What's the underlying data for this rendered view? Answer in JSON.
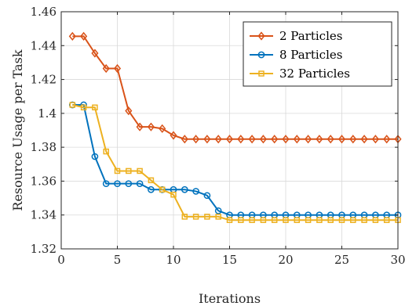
{
  "chart_data": {
    "type": "line",
    "xlabel": "Iterations",
    "ylabel": "Resource Usage per Task",
    "xlim": [
      0,
      30
    ],
    "ylim": [
      1.32,
      1.46
    ],
    "xticks": [
      0,
      5,
      10,
      15,
      20,
      25,
      30
    ],
    "yticks": [
      1.32,
      1.34,
      1.36,
      1.38,
      1.4,
      1.42,
      1.44,
      1.46
    ],
    "ytick_labels": [
      "1.32",
      "1.34",
      "1.36",
      "1.38",
      "1.4",
      "1.42",
      "1.44",
      "1.46"
    ],
    "grid": true,
    "legend_position": "top-right",
    "x": [
      1,
      2,
      3,
      4,
      5,
      6,
      7,
      8,
      9,
      10,
      11,
      12,
      13,
      14,
      15,
      16,
      17,
      18,
      19,
      20,
      21,
      22,
      23,
      24,
      25,
      26,
      27,
      28,
      29,
      30
    ],
    "series": [
      {
        "name": "2 Particles",
        "color": "#D95319",
        "marker": "diamond",
        "values": [
          1.4455,
          1.4455,
          1.4355,
          1.4265,
          1.4265,
          1.4015,
          1.392,
          1.392,
          1.391,
          1.387,
          1.3848,
          1.3848,
          1.3848,
          1.3848,
          1.3848,
          1.3848,
          1.3848,
          1.3848,
          1.3848,
          1.3848,
          1.3848,
          1.3848,
          1.3848,
          1.3848,
          1.3848,
          1.3848,
          1.3848,
          1.3848,
          1.3848,
          1.3848
        ]
      },
      {
        "name": "8 Particles",
        "color": "#0072BD",
        "marker": "circle",
        "values": [
          1.405,
          1.405,
          1.3745,
          1.3585,
          1.3585,
          1.3585,
          1.3585,
          1.355,
          1.355,
          1.355,
          1.355,
          1.354,
          1.3515,
          1.3425,
          1.34,
          1.34,
          1.34,
          1.34,
          1.34,
          1.34,
          1.34,
          1.34,
          1.34,
          1.34,
          1.34,
          1.34,
          1.34,
          1.34,
          1.34,
          1.34
        ]
      },
      {
        "name": "32 Particles",
        "color": "#EDB120",
        "marker": "square",
        "values": [
          1.405,
          1.4035,
          1.4035,
          1.3775,
          1.366,
          1.366,
          1.366,
          1.3605,
          1.355,
          1.352,
          1.339,
          1.339,
          1.339,
          1.339,
          1.337,
          1.337,
          1.337,
          1.337,
          1.337,
          1.337,
          1.337,
          1.337,
          1.337,
          1.337,
          1.337,
          1.337,
          1.337,
          1.337,
          1.337,
          1.337
        ]
      }
    ]
  }
}
